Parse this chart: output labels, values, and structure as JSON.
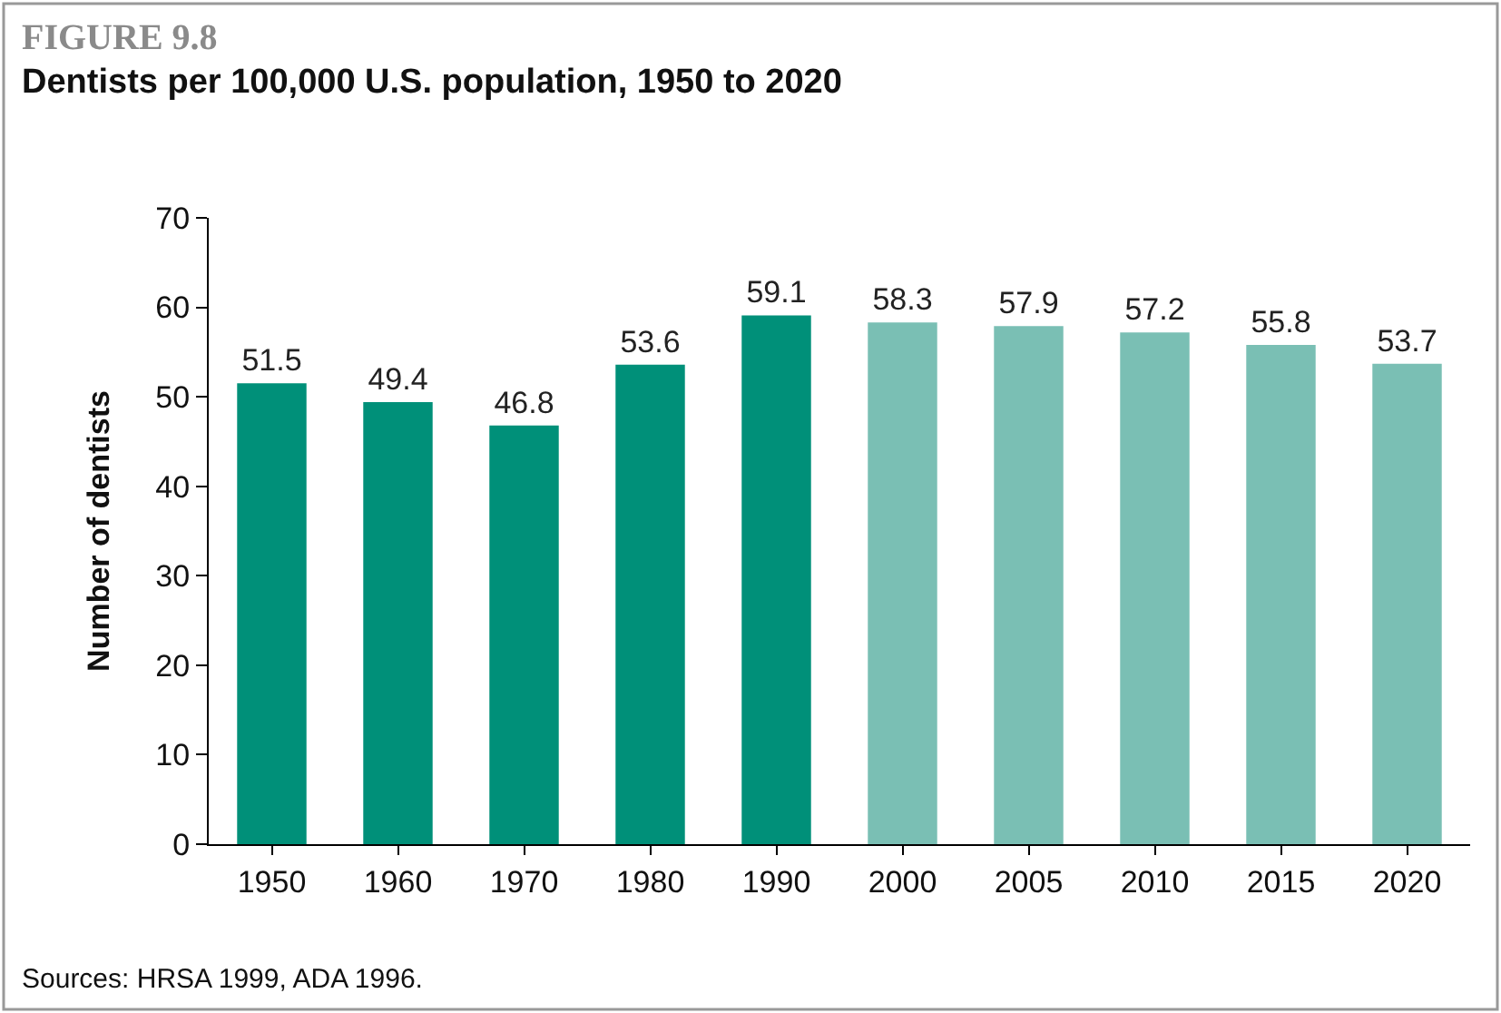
{
  "chart_data": {
    "type": "bar",
    "title": "FIGURE 9.8",
    "subtitle": "Dentists per 100,000 U.S. population, 1950 to 2020",
    "ylabel": "Number of dentists",
    "categories": [
      "1950",
      "1960",
      "1970",
      "1980",
      "1990",
      "2000",
      "2005",
      "2010",
      "2015",
      "2020"
    ],
    "values": [
      51.5,
      49.4,
      46.8,
      53.6,
      59.1,
      58.3,
      57.9,
      57.2,
      55.8,
      53.7
    ],
    "colors": [
      "#009079",
      "#009079",
      "#009079",
      "#009079",
      "#009079",
      "#7abfb4",
      "#7abfb4",
      "#7abfb4",
      "#7abfb4",
      "#7abfb4"
    ],
    "ylim": [
      0,
      70
    ],
    "yticks": [
      0,
      10,
      20,
      30,
      40,
      50,
      60,
      70
    ],
    "data_labels": true,
    "annotations": [
      "Sources: HRSA 1999, ADA 1996."
    ]
  }
}
